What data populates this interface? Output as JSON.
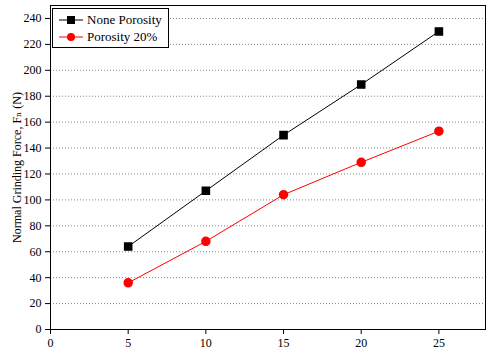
{
  "chart_data": {
    "type": "line",
    "x_label": null,
    "y_label": "Normal Grinding Force, Fₙ (N)",
    "x": [
      5,
      10,
      15,
      20,
      25
    ],
    "series": [
      {
        "name": "None Porosity",
        "color": "#000000",
        "marker": "square",
        "values": [
          64,
          107,
          150,
          189,
          230
        ]
      },
      {
        "name": "Porosity 20%",
        "color": "#ff0000",
        "marker": "circle",
        "values": [
          36,
          68,
          104,
          129,
          153
        ]
      }
    ],
    "xlim": [
      0,
      28
    ],
    "xticks": [
      0,
      5,
      10,
      15,
      20,
      25
    ],
    "ylim": [
      0,
      250
    ],
    "yticks": [
      0,
      20,
      40,
      60,
      80,
      100,
      120,
      140,
      160,
      180,
      200,
      220,
      240
    ],
    "grid": true,
    "legend": "top-left"
  }
}
